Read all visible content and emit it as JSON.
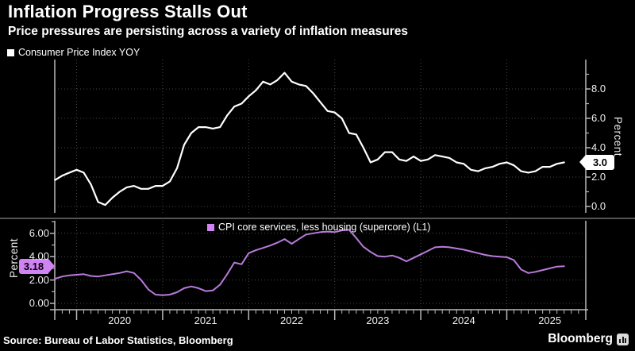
{
  "header": {
    "title": "Inflation Progress Stalls Out",
    "subtitle": "Price pressures are persisting across a variety of inflation measures"
  },
  "top_chart": {
    "legend": "Consumer Price Index YOY",
    "axis_label": "Percent",
    "last_value_label": "3.0",
    "y_ticks": [
      {
        "label": "8.0",
        "value": 8
      },
      {
        "label": "6.0",
        "value": 6
      },
      {
        "label": "4.0",
        "value": 4
      },
      {
        "label": "2.0",
        "value": 2
      },
      {
        "label": "0.0",
        "value": 0
      }
    ],
    "y_minor_ticks": [
      1,
      3,
      5,
      7,
      9
    ]
  },
  "bottom_chart": {
    "legend": "CPI core services, less housing (supercore) (L1)",
    "axis_label": "Percent",
    "last_value_label": "3.18",
    "y_ticks": [
      {
        "label": "6.00",
        "value": 6
      },
      {
        "label": "4.00",
        "value": 4
      },
      {
        "label": "2.00",
        "value": 2
      },
      {
        "label": "0.00",
        "value": 0
      }
    ],
    "y_minor_ticks": [
      1,
      3,
      5,
      7
    ]
  },
  "x_axis": {
    "years": [
      "2020",
      "2021",
      "2022",
      "2023",
      "2024",
      "2025"
    ]
  },
  "footer": {
    "source": "Source: Bureau of Labor Statistics, Bloomberg",
    "brand": "Bloomberg"
  },
  "colors": {
    "background": "#000000",
    "foreground": "#ffffff",
    "grid": "#484848",
    "axis": "#b8b8b8",
    "top_line": "#ffffff",
    "bottom_line": "#b87bdb",
    "bottom_accent": "#d083f2"
  },
  "chart_data": [
    {
      "type": "line",
      "name": "Consumer Price Index YOY",
      "panel": "top",
      "unit": "Percent",
      "frequency": "monthly",
      "x_start": "2019-10",
      "x_end": "2025-09",
      "ylim": [
        0,
        10
      ],
      "axis_side": "right",
      "grid": true,
      "last_value": 3.0,
      "values": [
        1.8,
        2.1,
        2.3,
        2.5,
        2.3,
        1.5,
        0.3,
        0.1,
        0.6,
        1.0,
        1.3,
        1.4,
        1.2,
        1.2,
        1.4,
        1.4,
        1.7,
        2.6,
        4.2,
        5.0,
        5.4,
        5.4,
        5.3,
        5.4,
        6.2,
        6.8,
        7.0,
        7.5,
        7.9,
        8.5,
        8.3,
        8.6,
        9.1,
        8.5,
        8.3,
        8.2,
        7.7,
        7.1,
        6.5,
        6.4,
        6.0,
        5.0,
        4.9,
        4.0,
        3.0,
        3.2,
        3.7,
        3.7,
        3.2,
        3.1,
        3.4,
        3.1,
        3.2,
        3.5,
        3.4,
        3.3,
        3.0,
        2.9,
        2.5,
        2.4,
        2.6,
        2.7,
        2.9,
        3.0,
        2.8,
        2.4,
        2.3,
        2.4,
        2.7,
        2.7,
        2.9,
        3.0
      ]
    },
    {
      "type": "line",
      "name": "CPI core services, less housing (supercore) (L1)",
      "panel": "bottom",
      "unit": "Percent",
      "frequency": "monthly",
      "x_start": "2019-10",
      "x_end": "2025-09",
      "ylim": [
        0,
        7
      ],
      "axis_side": "left",
      "grid": true,
      "last_value": 3.18,
      "values": [
        2.1,
        2.3,
        2.4,
        2.45,
        2.5,
        2.35,
        2.3,
        2.4,
        2.5,
        2.6,
        2.75,
        2.6,
        2.0,
        1.2,
        0.75,
        0.7,
        0.75,
        0.95,
        1.3,
        1.45,
        1.3,
        1.05,
        1.1,
        1.6,
        2.5,
        3.5,
        3.35,
        4.3,
        4.55,
        4.75,
        4.95,
        5.2,
        5.5,
        5.1,
        5.5,
        5.9,
        6.0,
        6.1,
        6.15,
        6.1,
        6.25,
        6.3,
        5.6,
        4.85,
        4.4,
        4.05,
        4.0,
        4.1,
        3.9,
        3.6,
        3.9,
        4.2,
        4.5,
        4.8,
        4.85,
        4.8,
        4.7,
        4.6,
        4.45,
        4.3,
        4.15,
        4.05,
        4.0,
        3.95,
        3.7,
        2.9,
        2.6,
        2.7,
        2.85,
        3.0,
        3.15,
        3.18
      ]
    }
  ]
}
